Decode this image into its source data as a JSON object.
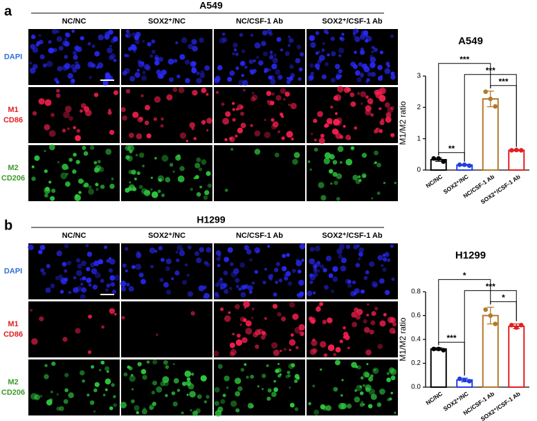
{
  "panels": [
    {
      "label": "a",
      "cell_line": "A549",
      "columns": [
        "NC/NC",
        "SOX2⁺/NC",
        "NC/CSF-1 Ab",
        "SOX2⁺/CSF-1 Ab"
      ],
      "rows": [
        {
          "lines": [
            "DAPI"
          ],
          "color": "#2e6fd8"
        },
        {
          "lines": [
            "M1",
            "CD86"
          ],
          "color": "#e02020"
        },
        {
          "lines": [
            "M2",
            "CD206"
          ],
          "color": "#3a9a2a"
        }
      ]
    },
    {
      "label": "b",
      "cell_line": "H1299",
      "columns": [
        "NC/NC",
        "SOX2⁺/NC",
        "NC/CSF-1 Ab",
        "SOX2⁺/CSF-1 Ab"
      ],
      "rows": [
        {
          "lines": [
            "DAPI"
          ],
          "color": "#2e6fd8"
        },
        {
          "lines": [
            "M1",
            "CD86"
          ],
          "color": "#e02020"
        },
        {
          "lines": [
            "M2",
            "CD206"
          ],
          "color": "#3a9a2a"
        }
      ]
    }
  ],
  "chart_data": [
    {
      "type": "bar",
      "title": "A549",
      "y_label": "M1/M2 ratio",
      "categories": [
        "NC/NC",
        "SOX2⁺/NC",
        "NC/CSF-1 Ab",
        "SOX2⁺/CSF-1 Ab"
      ],
      "values": [
        0.33,
        0.16,
        2.27,
        0.63
      ],
      "errors": [
        0.05,
        0.02,
        0.25,
        0.02
      ],
      "points": [
        [
          0.37,
          0.37,
          0.27
        ],
        [
          0.17,
          0.17,
          0.14
        ],
        [
          2.5,
          2.27,
          2.03
        ],
        [
          0.63,
          0.64,
          0.63
        ]
      ],
      "colors": [
        "#000000",
        "#1f3fe0",
        "#b07a2a",
        "#e02020"
      ],
      "ylim": [
        0,
        3
      ],
      "yticks": [
        0,
        1,
        2,
        3
      ],
      "comparisons": [
        {
          "from": 0,
          "to": 1,
          "label": "**"
        },
        {
          "from": 2,
          "to": 3,
          "label": "***"
        },
        {
          "from": 1,
          "to": 3,
          "label": "***"
        },
        {
          "from": 0,
          "to": 2,
          "label": "***"
        }
      ]
    },
    {
      "type": "bar",
      "title": "H1299",
      "y_label": "M1/M2 ratio",
      "categories": [
        "NC/NC",
        "SOX2⁺/NC",
        "NC/CSF-1 Ab",
        "SOX2⁺/CSF-1 Ab"
      ],
      "values": [
        0.32,
        0.06,
        0.6,
        0.51
      ],
      "errors": [
        0.01,
        0.015,
        0.07,
        0.02
      ],
      "points": [
        [
          0.32,
          0.32,
          0.31
        ],
        [
          0.07,
          0.06,
          0.05
        ],
        [
          0.65,
          0.6,
          0.53
        ],
        [
          0.52,
          0.5,
          0.52
        ]
      ],
      "colors": [
        "#000000",
        "#1f3fe0",
        "#b07a2a",
        "#e02020"
      ],
      "ylim": [
        0,
        0.8
      ],
      "yticks": [
        {
          "value": 0,
          "label": "0.0"
        },
        0.2,
        0.4,
        0.6,
        0.8
      ],
      "comparisons": [
        {
          "from": 0,
          "to": 1,
          "label": "***"
        },
        {
          "from": 2,
          "to": 3,
          "label": "*"
        },
        {
          "from": 1,
          "to": 3,
          "label": "***"
        },
        {
          "from": 0,
          "to": 2,
          "label": "*"
        }
      ]
    }
  ]
}
